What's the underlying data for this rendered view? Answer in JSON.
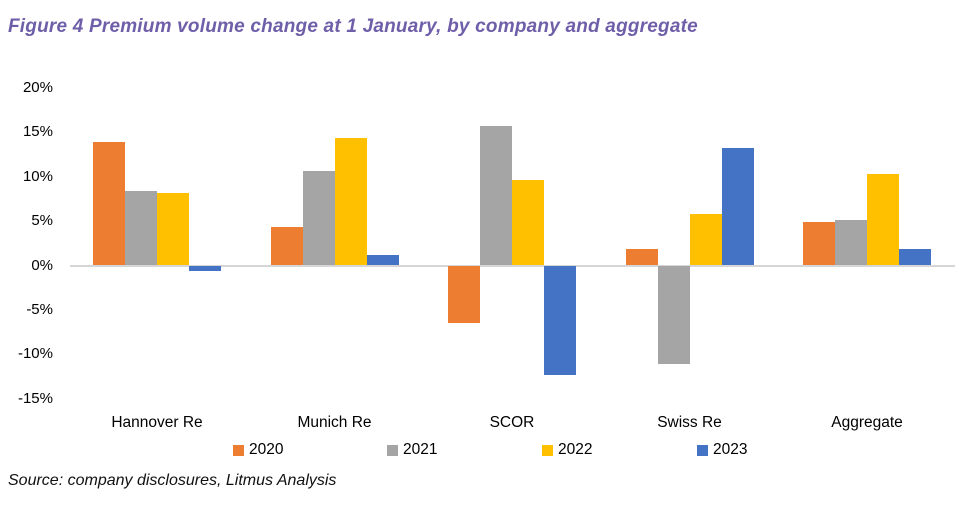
{
  "title": "Figure 4 Premium volume change at 1 January, by company and aggregate",
  "source": "Source: company disclosures, Litmus Analysis",
  "colors": {
    "title_text": "#6F5FA9",
    "axis_line": "#d6d6d6",
    "series_2020": "#ED7D31",
    "series_2021": "#A5A5A5",
    "series_2022": "#FFC000",
    "series_2023": "#4472C4"
  },
  "chart_data": {
    "type": "bar",
    "title": "Figure 4 Premium volume change at 1 January, by company and aggregate",
    "categories": [
      "Hannover Re",
      "Munich Re",
      "SCOR",
      "Swiss Re",
      "Aggregate"
    ],
    "series": [
      {
        "name": "2020",
        "color": "#ED7D31",
        "values": [
          13.9,
          4.3,
          -6.5,
          1.9,
          4.9
        ]
      },
      {
        "name": "2021",
        "color": "#A5A5A5",
        "values": [
          8.4,
          10.7,
          15.7,
          -11.1,
          5.1
        ]
      },
      {
        "name": "2022",
        "color": "#FFC000",
        "values": [
          8.2,
          14.4,
          9.6,
          5.8,
          10.3
        ]
      },
      {
        "name": "2023",
        "color": "#4472C4",
        "values": [
          -0.6,
          1.2,
          -12.4,
          13.2,
          1.9
        ]
      }
    ],
    "yticks": [
      20,
      15,
      10,
      5,
      0,
      -5,
      -10,
      -15
    ],
    "ytick_suffix": "%",
    "ylim": [
      -15,
      20
    ],
    "xlabel": "",
    "ylabel": "",
    "grid": false,
    "legend_position": "bottom"
  }
}
